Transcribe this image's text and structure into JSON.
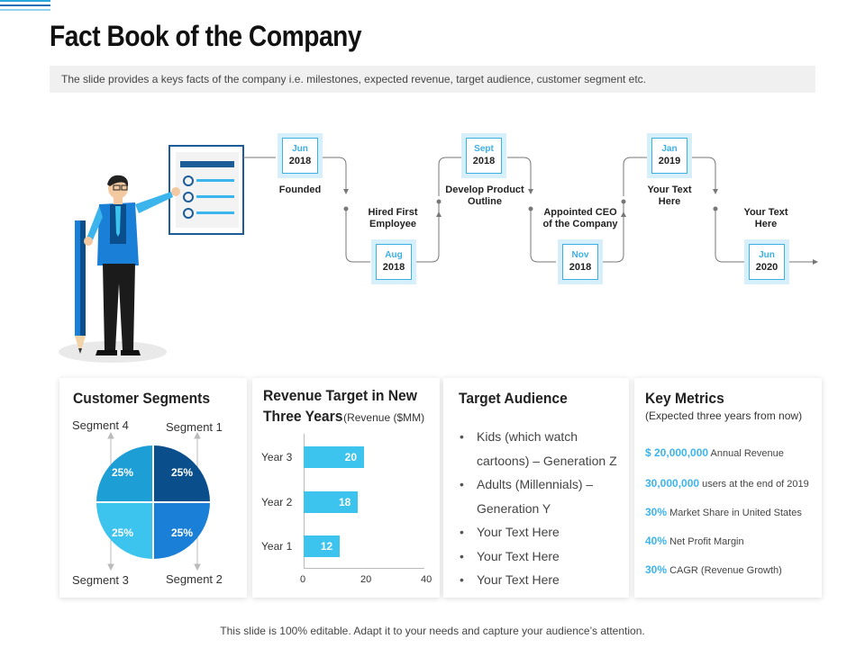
{
  "header": {
    "title": "Fact Book of the Company",
    "subtitle": "The slide provides a keys facts of the company i.e. milestones, expected revenue, target audience, customer segment etc."
  },
  "timeline": [
    {
      "month": "Jun",
      "year": "2018",
      "label": "Founded"
    },
    {
      "month": "Aug",
      "year": "2018",
      "label": "Hired First Employee"
    },
    {
      "month": "Sept",
      "year": "2018",
      "label": "Develop Product Outline"
    },
    {
      "month": "Nov",
      "year": "2018",
      "label": "Appointed CEO of the Company"
    },
    {
      "month": "Jan",
      "year": "2019",
      "label": "Your Text Here"
    },
    {
      "month": "Jun",
      "year": "2020",
      "label": "Your Text Here"
    }
  ],
  "customer_segments": {
    "title": "Customer Segments",
    "segments": [
      {
        "name": "Segment 1",
        "pct": "25%",
        "color": "#0a4f8c"
      },
      {
        "name": "Segment 2",
        "pct": "25%",
        "color": "#1a7fd6"
      },
      {
        "name": "Segment 3",
        "pct": "25%",
        "color": "#3cc3ee"
      },
      {
        "name": "Segment 4",
        "pct": "25%",
        "color": "#1d9fd6"
      }
    ]
  },
  "revenue": {
    "title_line1": "Revenue Target in New",
    "title_line2": "Three Years",
    "unit": "(Revenue ($MM)"
  },
  "chart_data": {
    "type": "bar",
    "orientation": "horizontal",
    "categories": [
      "Year 3",
      "Year 2",
      "Year 1"
    ],
    "values": [
      20,
      18,
      12
    ],
    "xlim": [
      0,
      40
    ],
    "xticks": [
      0,
      20,
      40
    ],
    "bar_color": "#3cc3ee"
  },
  "target_audience": {
    "title": "Target Audience",
    "items": [
      "Kids (which watch cartoons) – Generation Z",
      "Adults (Millennials) – Generation Y",
      "Your Text Here",
      "Your Text Here",
      "Your Text Here"
    ]
  },
  "key_metrics": {
    "title": "Key Metrics",
    "subtitle": "(Expected three years from now)",
    "items": [
      {
        "value": "$ 20,000,000",
        "label": "Annual Revenue"
      },
      {
        "value": "30,000,000",
        "label": "users at the end of 2019"
      },
      {
        "value": "30%",
        "label": "Market Share in United States"
      },
      {
        "value": "40%",
        "label": "Net Profit Margin"
      },
      {
        "value": "30%",
        "label": "CAGR (Revenue Growth)"
      }
    ]
  },
  "footer": "This slide is 100% editable. Adapt it to your needs and capture your audience’s attention.",
  "colors": {
    "accent": "#3cb4ec",
    "dark": "#0a4f8c"
  }
}
